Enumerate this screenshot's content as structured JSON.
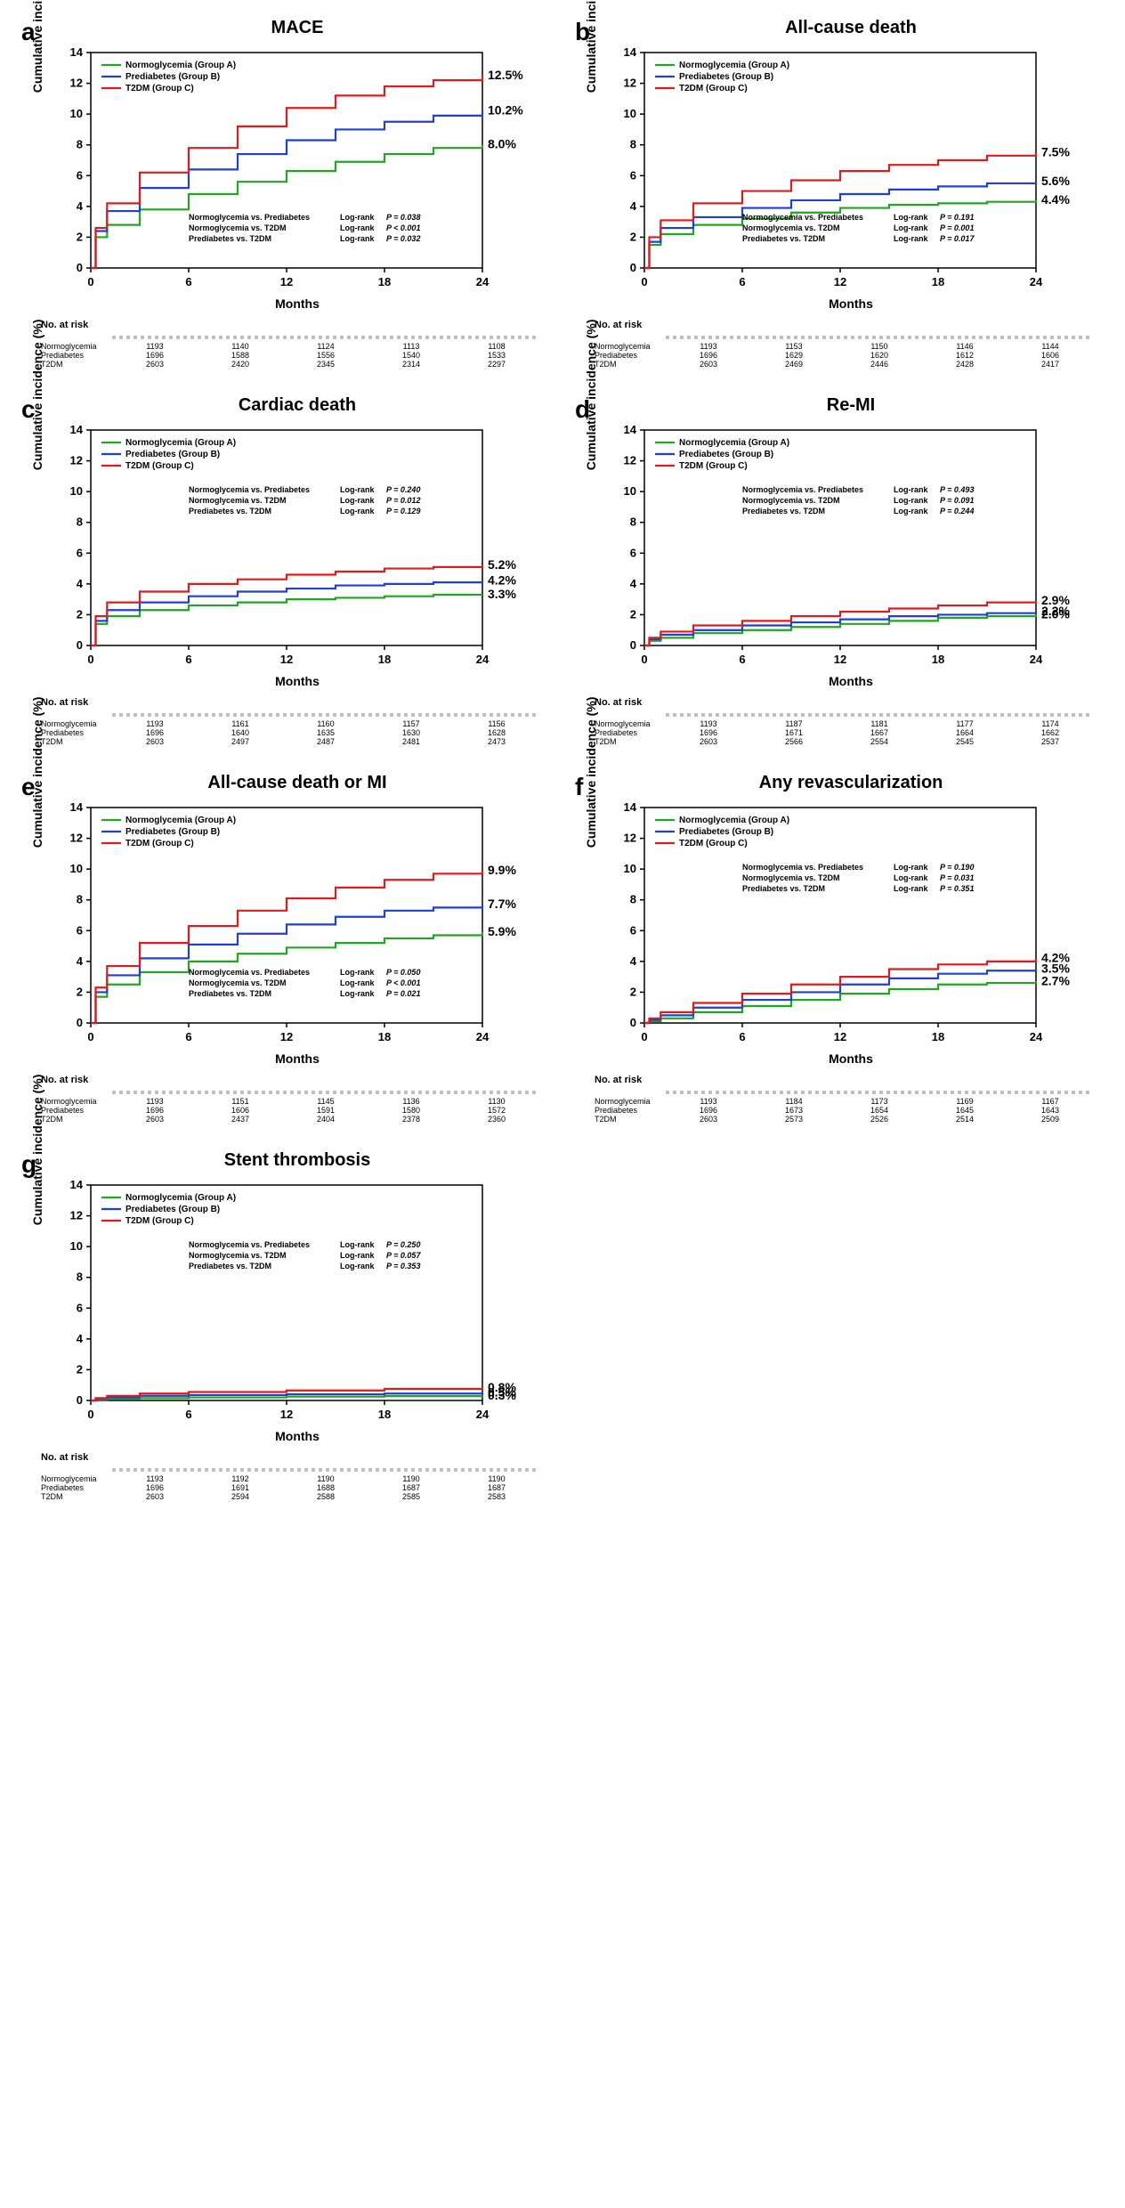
{
  "colors": {
    "groupA": "#1fa81f",
    "groupB": "#1f3fd6",
    "groupC": "#e11b1b",
    "axis": "#000000",
    "bg": "#ffffff"
  },
  "axes": {
    "ylabel": "Cumulative incidence (%)",
    "xlabel": "Months",
    "ymin": 0,
    "ymax": 14,
    "ytick_step": 2,
    "xmin": 0,
    "xmax": 24,
    "xtick_step": 6
  },
  "legend_labels": {
    "a": "Normoglycemia (Group A)",
    "b": "Prediabetes (Group B)",
    "c": "T2DM (Group C)"
  },
  "stat_labels": {
    "ab": "Normoglycemia vs. Prediabetes",
    "ac": "Normoglycemia vs. T2DM",
    "bc": "Prediabetes vs. T2DM",
    "prefix": "Log-rank"
  },
  "risk_header": "No. at risk",
  "risk_group_labels": [
    "Normoglycemia",
    "Prediabetes",
    "T2DM"
  ],
  "panels": [
    {
      "key": "a",
      "title": "MACE",
      "end_pct": {
        "a": "8.0%",
        "b": "10.2%",
        "c": "12.5%"
      },
      "stats": {
        "ab": "P = 0.038",
        "ac": "P < 0.001",
        "bc": "P = 0.032"
      },
      "stats_pos": "bottom",
      "series": {
        "a": [
          [
            0,
            0
          ],
          [
            0.3,
            2.0
          ],
          [
            1,
            2.8
          ],
          [
            3,
            3.8
          ],
          [
            6,
            4.8
          ],
          [
            9,
            5.6
          ],
          [
            12,
            6.3
          ],
          [
            15,
            6.9
          ],
          [
            18,
            7.4
          ],
          [
            21,
            7.8
          ],
          [
            24,
            8.0
          ]
        ],
        "b": [
          [
            0,
            0
          ],
          [
            0.3,
            2.4
          ],
          [
            1,
            3.7
          ],
          [
            3,
            5.2
          ],
          [
            6,
            6.4
          ],
          [
            9,
            7.4
          ],
          [
            12,
            8.3
          ],
          [
            15,
            9.0
          ],
          [
            18,
            9.5
          ],
          [
            21,
            9.9
          ],
          [
            24,
            10.2
          ]
        ],
        "c": [
          [
            0,
            0
          ],
          [
            0.3,
            2.6
          ],
          [
            1,
            4.2
          ],
          [
            3,
            6.2
          ],
          [
            6,
            7.8
          ],
          [
            9,
            9.2
          ],
          [
            12,
            10.4
          ],
          [
            15,
            11.2
          ],
          [
            18,
            11.8
          ],
          [
            21,
            12.2
          ],
          [
            24,
            12.5
          ]
        ]
      },
      "risk": {
        "a": [
          1193,
          1140,
          1124,
          1113,
          1108
        ],
        "b": [
          1696,
          1588,
          1556,
          1540,
          1533
        ],
        "c": [
          2603,
          2420,
          2345,
          2314,
          2297
        ]
      }
    },
    {
      "key": "b",
      "title": "All-cause death",
      "end_pct": {
        "a": "4.4%",
        "b": "5.6%",
        "c": "7.5%"
      },
      "stats": {
        "ab": "P = 0.191",
        "ac": "P = 0.001",
        "bc": "P = 0.017"
      },
      "stats_pos": "bottom",
      "series": {
        "a": [
          [
            0,
            0
          ],
          [
            0.3,
            1.5
          ],
          [
            1,
            2.2
          ],
          [
            3,
            2.8
          ],
          [
            6,
            3.2
          ],
          [
            9,
            3.6
          ],
          [
            12,
            3.9
          ],
          [
            15,
            4.1
          ],
          [
            18,
            4.2
          ],
          [
            21,
            4.3
          ],
          [
            24,
            4.4
          ]
        ],
        "b": [
          [
            0,
            0
          ],
          [
            0.3,
            1.7
          ],
          [
            1,
            2.6
          ],
          [
            3,
            3.3
          ],
          [
            6,
            3.9
          ],
          [
            9,
            4.4
          ],
          [
            12,
            4.8
          ],
          [
            15,
            5.1
          ],
          [
            18,
            5.3
          ],
          [
            21,
            5.5
          ],
          [
            24,
            5.6
          ]
        ],
        "c": [
          [
            0,
            0
          ],
          [
            0.3,
            2.0
          ],
          [
            1,
            3.1
          ],
          [
            3,
            4.2
          ],
          [
            6,
            5.0
          ],
          [
            9,
            5.7
          ],
          [
            12,
            6.3
          ],
          [
            15,
            6.7
          ],
          [
            18,
            7.0
          ],
          [
            21,
            7.3
          ],
          [
            24,
            7.5
          ]
        ]
      },
      "risk": {
        "a": [
          1193,
          1153,
          1150,
          1146,
          1144
        ],
        "b": [
          1696,
          1629,
          1620,
          1612,
          1606
        ],
        "c": [
          2603,
          2469,
          2446,
          2428,
          2417
        ]
      }
    },
    {
      "key": "c",
      "title": "Cardiac death",
      "end_pct": {
        "a": "3.3%",
        "b": "4.2%",
        "c": "5.2%"
      },
      "stats": {
        "ab": "P = 0.240",
        "ac": "P = 0.012",
        "bc": "P = 0.129"
      },
      "stats_pos": "top",
      "series": {
        "a": [
          [
            0,
            0
          ],
          [
            0.3,
            1.4
          ],
          [
            1,
            1.9
          ],
          [
            3,
            2.3
          ],
          [
            6,
            2.6
          ],
          [
            9,
            2.8
          ],
          [
            12,
            3.0
          ],
          [
            15,
            3.1
          ],
          [
            18,
            3.2
          ],
          [
            21,
            3.3
          ],
          [
            24,
            3.3
          ]
        ],
        "b": [
          [
            0,
            0
          ],
          [
            0.3,
            1.6
          ],
          [
            1,
            2.3
          ],
          [
            3,
            2.8
          ],
          [
            6,
            3.2
          ],
          [
            9,
            3.5
          ],
          [
            12,
            3.7
          ],
          [
            15,
            3.9
          ],
          [
            18,
            4.0
          ],
          [
            21,
            4.1
          ],
          [
            24,
            4.2
          ]
        ],
        "c": [
          [
            0,
            0
          ],
          [
            0.3,
            1.9
          ],
          [
            1,
            2.8
          ],
          [
            3,
            3.5
          ],
          [
            6,
            4.0
          ],
          [
            9,
            4.3
          ],
          [
            12,
            4.6
          ],
          [
            15,
            4.8
          ],
          [
            18,
            5.0
          ],
          [
            21,
            5.1
          ],
          [
            24,
            5.2
          ]
        ]
      },
      "risk": {
        "a": [
          1193,
          1161,
          1160,
          1157,
          1156
        ],
        "b": [
          1696,
          1640,
          1635,
          1630,
          1628
        ],
        "c": [
          2603,
          2497,
          2487,
          2481,
          2473
        ]
      }
    },
    {
      "key": "d",
      "title": "Re-MI",
      "end_pct": {
        "a": "2.0%",
        "b": "2.2%",
        "c": "2.9%"
      },
      "stats": {
        "ab": "P = 0.493",
        "ac": "P = 0.091",
        "bc": "P = 0.244"
      },
      "stats_pos": "top",
      "series": {
        "a": [
          [
            0,
            0
          ],
          [
            0.3,
            0.3
          ],
          [
            1,
            0.5
          ],
          [
            3,
            0.8
          ],
          [
            6,
            1.0
          ],
          [
            9,
            1.2
          ],
          [
            12,
            1.4
          ],
          [
            15,
            1.6
          ],
          [
            18,
            1.8
          ],
          [
            21,
            1.9
          ],
          [
            24,
            2.0
          ]
        ],
        "b": [
          [
            0,
            0
          ],
          [
            0.3,
            0.4
          ],
          [
            1,
            0.7
          ],
          [
            3,
            1.0
          ],
          [
            6,
            1.3
          ],
          [
            9,
            1.5
          ],
          [
            12,
            1.7
          ],
          [
            15,
            1.9
          ],
          [
            18,
            2.0
          ],
          [
            21,
            2.1
          ],
          [
            24,
            2.2
          ]
        ],
        "c": [
          [
            0,
            0
          ],
          [
            0.3,
            0.5
          ],
          [
            1,
            0.9
          ],
          [
            3,
            1.3
          ],
          [
            6,
            1.6
          ],
          [
            9,
            1.9
          ],
          [
            12,
            2.2
          ],
          [
            15,
            2.4
          ],
          [
            18,
            2.6
          ],
          [
            21,
            2.8
          ],
          [
            24,
            2.9
          ]
        ]
      },
      "risk": {
        "a": [
          1193,
          1187,
          1181,
          1177,
          1174
        ],
        "b": [
          1696,
          1671,
          1667,
          1664,
          1662
        ],
        "c": [
          2603,
          2566,
          2554,
          2545,
          2537
        ]
      }
    },
    {
      "key": "e",
      "title": "All-cause death or MI",
      "end_pct": {
        "a": "5.9%",
        "b": "7.7%",
        "c": "9.9%"
      },
      "stats": {
        "ab": "P = 0.050",
        "ac": "P < 0.001",
        "bc": "P = 0.021"
      },
      "stats_pos": "bottom",
      "series": {
        "a": [
          [
            0,
            0
          ],
          [
            0.3,
            1.7
          ],
          [
            1,
            2.5
          ],
          [
            3,
            3.3
          ],
          [
            6,
            4.0
          ],
          [
            9,
            4.5
          ],
          [
            12,
            4.9
          ],
          [
            15,
            5.2
          ],
          [
            18,
            5.5
          ],
          [
            21,
            5.7
          ],
          [
            24,
            5.9
          ]
        ],
        "b": [
          [
            0,
            0
          ],
          [
            0.3,
            2.0
          ],
          [
            1,
            3.1
          ],
          [
            3,
            4.2
          ],
          [
            6,
            5.1
          ],
          [
            9,
            5.8
          ],
          [
            12,
            6.4
          ],
          [
            15,
            6.9
          ],
          [
            18,
            7.3
          ],
          [
            21,
            7.5
          ],
          [
            24,
            7.7
          ]
        ],
        "c": [
          [
            0,
            0
          ],
          [
            0.3,
            2.3
          ],
          [
            1,
            3.7
          ],
          [
            3,
            5.2
          ],
          [
            6,
            6.3
          ],
          [
            9,
            7.3
          ],
          [
            12,
            8.1
          ],
          [
            15,
            8.8
          ],
          [
            18,
            9.3
          ],
          [
            21,
            9.7
          ],
          [
            24,
            9.9
          ]
        ]
      },
      "risk": {
        "a": [
          1193,
          1151,
          1145,
          1136,
          1130
        ],
        "b": [
          1696,
          1606,
          1591,
          1580,
          1572
        ],
        "c": [
          2603,
          2437,
          2404,
          2378,
          2360
        ]
      }
    },
    {
      "key": "f",
      "title": "Any revascularization",
      "end_pct": {
        "a": "2.7%",
        "b": "3.5%",
        "c": "4.2%"
      },
      "stats": {
        "ab": "P = 0.190",
        "ac": "P = 0.031",
        "bc": "P = 0.351"
      },
      "stats_pos": "top",
      "series": {
        "a": [
          [
            0,
            0
          ],
          [
            0.3,
            0.1
          ],
          [
            1,
            0.3
          ],
          [
            3,
            0.7
          ],
          [
            6,
            1.1
          ],
          [
            9,
            1.5
          ],
          [
            12,
            1.9
          ],
          [
            15,
            2.2
          ],
          [
            18,
            2.5
          ],
          [
            21,
            2.6
          ],
          [
            24,
            2.7
          ]
        ],
        "b": [
          [
            0,
            0
          ],
          [
            0.3,
            0.2
          ],
          [
            1,
            0.5
          ],
          [
            3,
            1.0
          ],
          [
            6,
            1.5
          ],
          [
            9,
            2.0
          ],
          [
            12,
            2.5
          ],
          [
            15,
            2.9
          ],
          [
            18,
            3.2
          ],
          [
            21,
            3.4
          ],
          [
            24,
            3.5
          ]
        ],
        "c": [
          [
            0,
            0
          ],
          [
            0.3,
            0.3
          ],
          [
            1,
            0.7
          ],
          [
            3,
            1.3
          ],
          [
            6,
            1.9
          ],
          [
            9,
            2.5
          ],
          [
            12,
            3.0
          ],
          [
            15,
            3.5
          ],
          [
            18,
            3.8
          ],
          [
            21,
            4.0
          ],
          [
            24,
            4.2
          ]
        ]
      },
      "risk": {
        "a": [
          1193,
          1184,
          1173,
          1169,
          1167
        ],
        "b": [
          1696,
          1673,
          1654,
          1645,
          1643
        ],
        "c": [
          2603,
          2573,
          2526,
          2514,
          2509
        ]
      }
    },
    {
      "key": "g",
      "title": "Stent thrombosis",
      "end_pct": {
        "a": "0.3%",
        "b": "0.5%",
        "c": "0.8%"
      },
      "stats": {
        "ab": "P = 0.250",
        "ac": "P = 0.057",
        "bc": "P = 0.353"
      },
      "stats_pos": "top",
      "series": {
        "a": [
          [
            0,
            0
          ],
          [
            0.3,
            0.05
          ],
          [
            1,
            0.1
          ],
          [
            3,
            0.15
          ],
          [
            6,
            0.2
          ],
          [
            12,
            0.25
          ],
          [
            18,
            0.28
          ],
          [
            24,
            0.3
          ]
        ],
        "b": [
          [
            0,
            0
          ],
          [
            0.3,
            0.1
          ],
          [
            1,
            0.2
          ],
          [
            3,
            0.3
          ],
          [
            6,
            0.35
          ],
          [
            12,
            0.4
          ],
          [
            18,
            0.45
          ],
          [
            24,
            0.5
          ]
        ],
        "c": [
          [
            0,
            0
          ],
          [
            0.3,
            0.15
          ],
          [
            1,
            0.3
          ],
          [
            3,
            0.45
          ],
          [
            6,
            0.55
          ],
          [
            12,
            0.65
          ],
          [
            18,
            0.75
          ],
          [
            24,
            0.8
          ]
        ]
      },
      "risk": {
        "a": [
          1193,
          1192,
          1190,
          1190,
          1190
        ],
        "b": [
          1696,
          1691,
          1688,
          1687,
          1687
        ],
        "c": [
          2603,
          2594,
          2588,
          2585,
          2583
        ]
      }
    }
  ]
}
